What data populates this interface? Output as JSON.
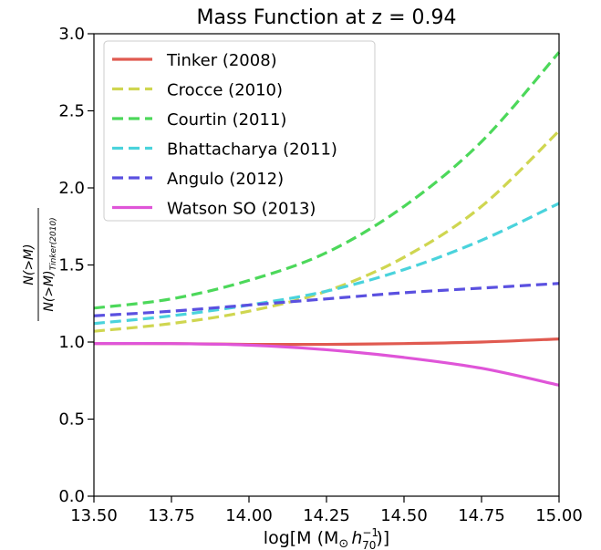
{
  "chart_data": {
    "type": "line",
    "title": "Mass Function at z = 0.94",
    "xlabel": "log[M (M⊙ h70⁻¹)]",
    "ylabel": "N(>M) / N(>M)Tinker(2010)",
    "xlim": [
      13.5,
      15.0
    ],
    "ylim": [
      0.0,
      3.0
    ],
    "x_ticks": [
      "13.50",
      "13.75",
      "14.00",
      "14.25",
      "14.50",
      "14.75",
      "15.00"
    ],
    "y_ticks": [
      "0.0",
      "0.5",
      "1.0",
      "1.5",
      "2.0",
      "2.5",
      "3.0"
    ],
    "grid": false,
    "legend_position": "top-left",
    "x": [
      13.5,
      13.75,
      14.0,
      14.25,
      14.5,
      14.75,
      15.0
    ],
    "series": [
      {
        "name": "Tinker (2008)",
        "color": "#e05a50",
        "dash": "solid",
        "values": [
          0.99,
          0.99,
          0.985,
          0.985,
          0.99,
          1.0,
          1.02
        ]
      },
      {
        "name": "Crocce (2010)",
        "color": "#cfd650",
        "dash": "dashed",
        "values": [
          1.07,
          1.12,
          1.2,
          1.33,
          1.55,
          1.88,
          2.37
        ]
      },
      {
        "name": "Courtin (2011)",
        "color": "#4cd85a",
        "dash": "dashed",
        "values": [
          1.22,
          1.28,
          1.4,
          1.58,
          1.88,
          2.3,
          2.88
        ]
      },
      {
        "name": "Bhattacharya (2011)",
        "color": "#4ad3dc",
        "dash": "dashed",
        "values": [
          1.12,
          1.17,
          1.24,
          1.33,
          1.47,
          1.66,
          1.9
        ]
      },
      {
        "name": "Angulo (2012)",
        "color": "#5a50e0",
        "dash": "dashed",
        "values": [
          1.17,
          1.2,
          1.24,
          1.28,
          1.32,
          1.35,
          1.38
        ]
      },
      {
        "name": "Watson SO (2013)",
        "color": "#df55d8",
        "dash": "solid",
        "values": [
          0.99,
          0.99,
          0.98,
          0.95,
          0.9,
          0.83,
          0.72
        ]
      }
    ]
  }
}
